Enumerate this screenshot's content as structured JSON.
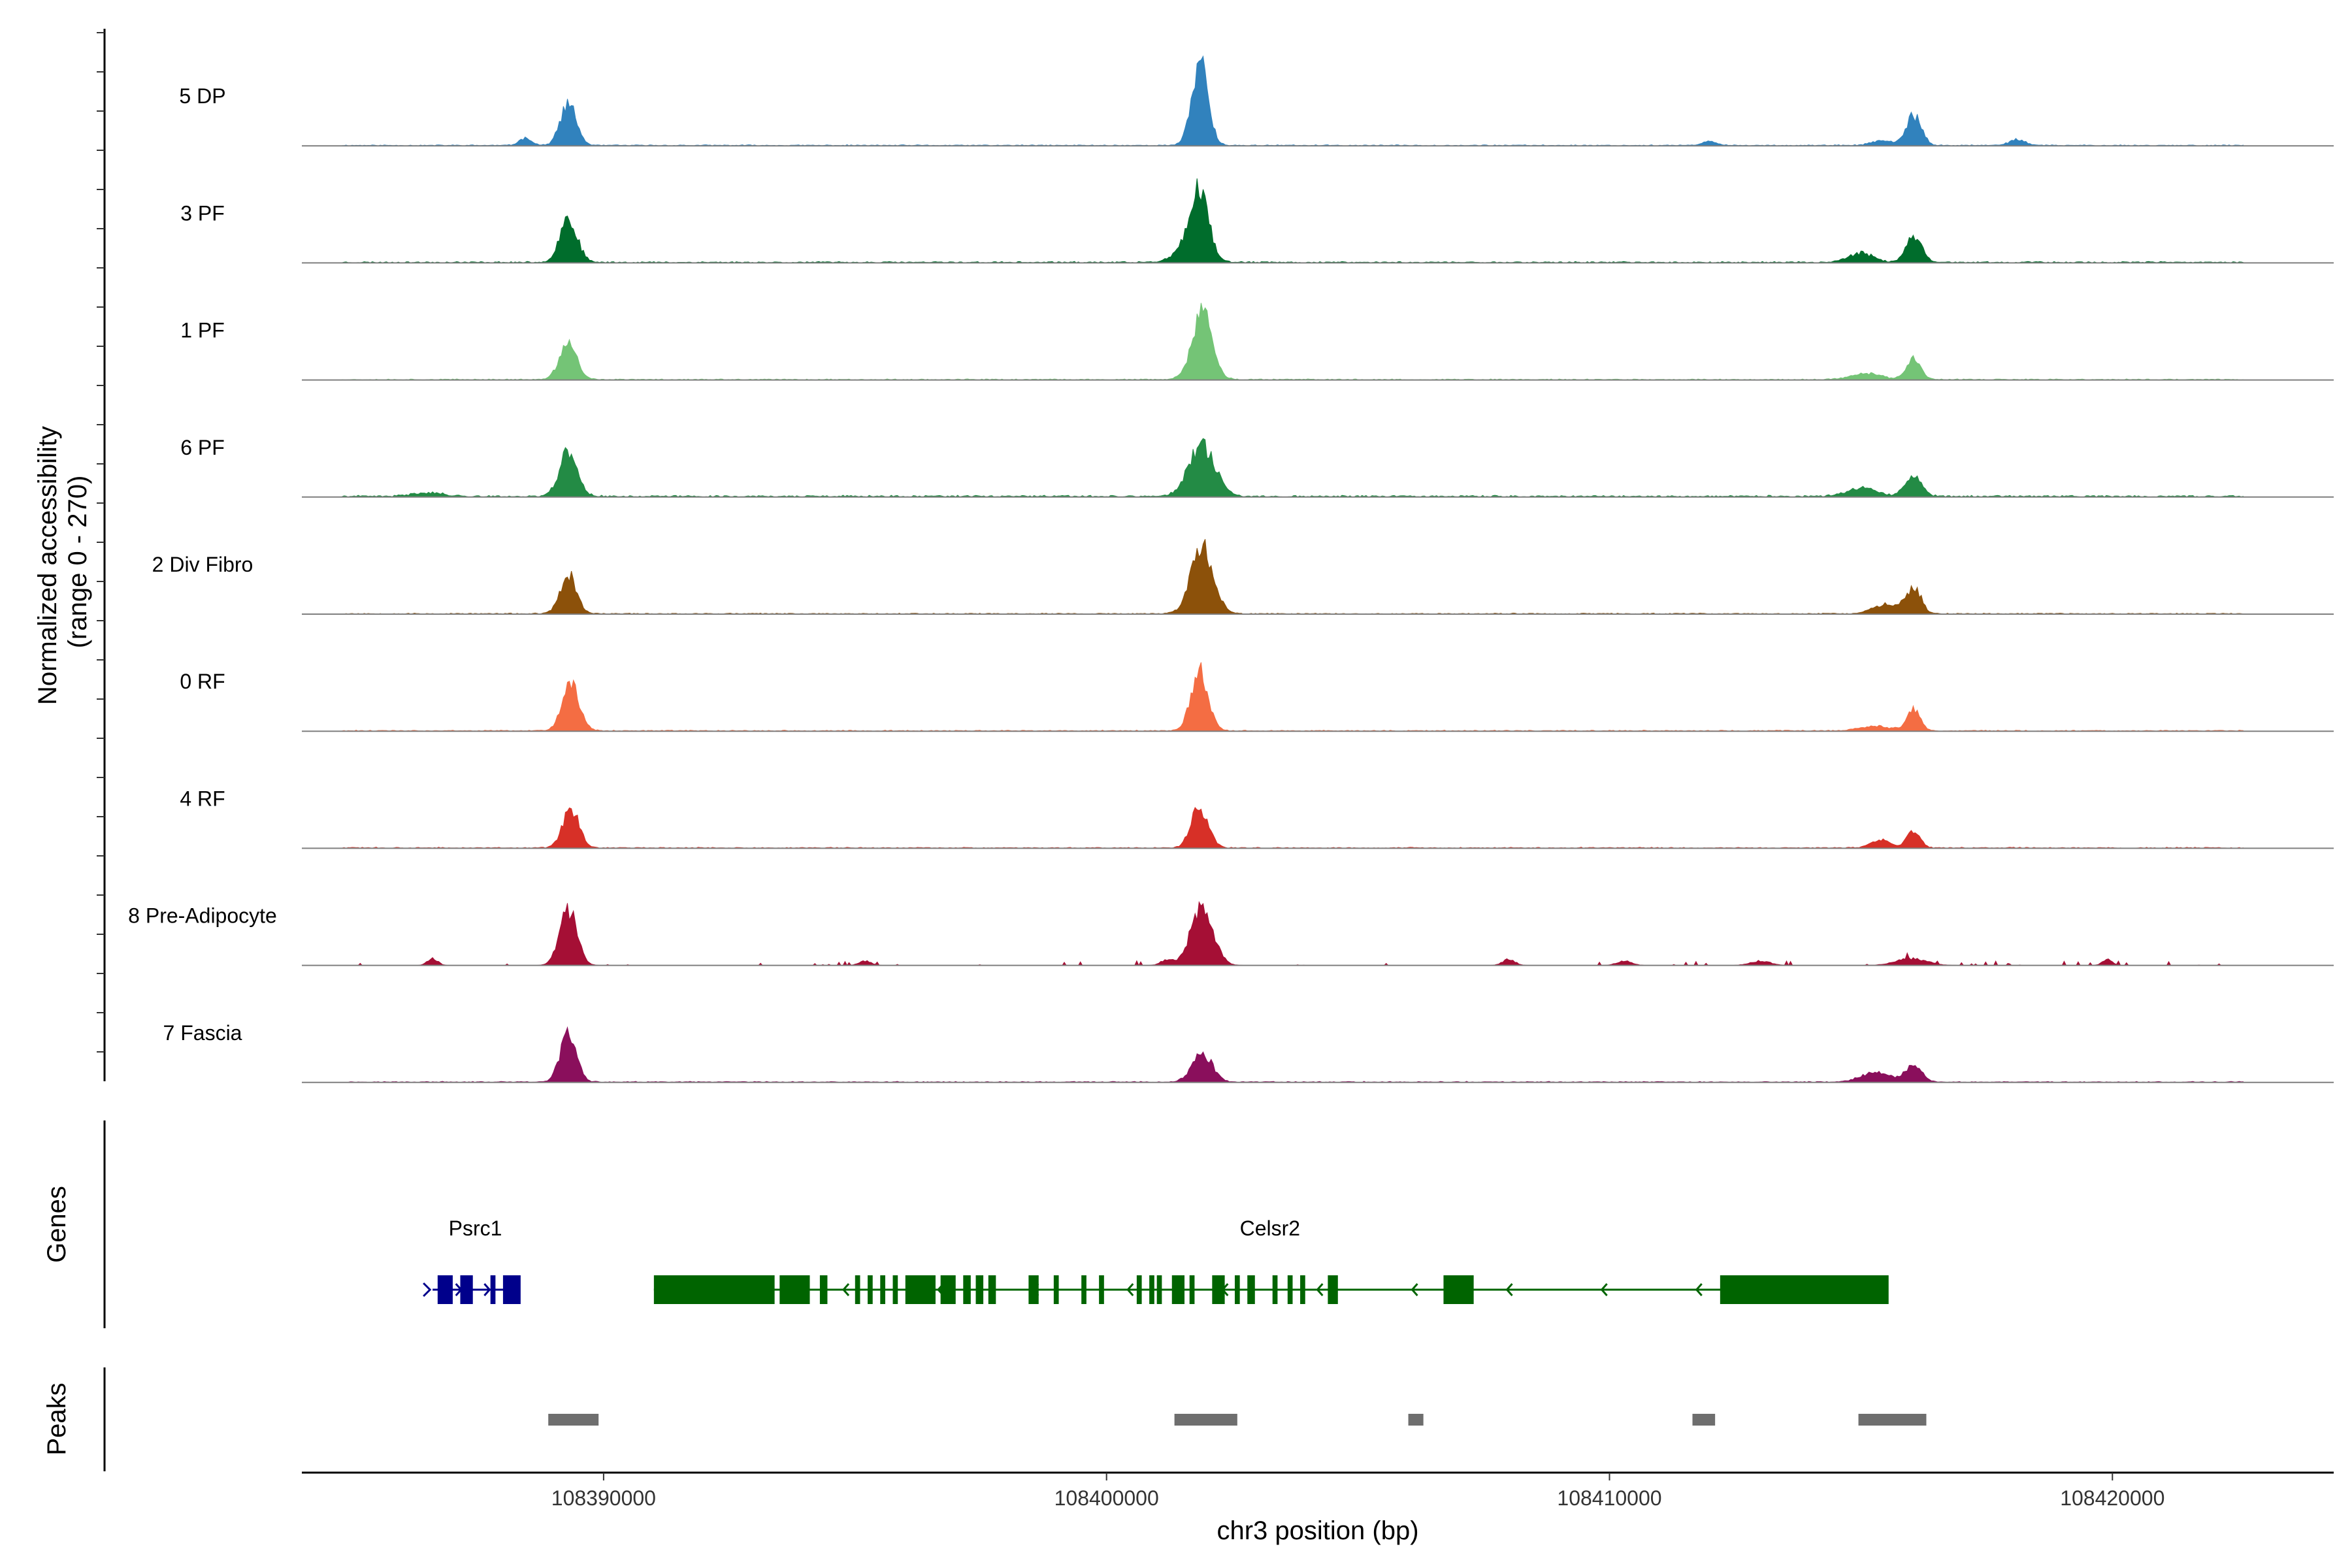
{
  "chart_data": {
    "type": "area",
    "title": "",
    "ylabel": "Normalized accessibility\n(range 0 - 270)",
    "xlabel": "chr3 position (bp)",
    "ylim": [
      0,
      270
    ],
    "xlim": [
      108384000,
      108424400
    ],
    "x_ticks": [
      {
        "value": 108390000,
        "label": "108390000"
      },
      {
        "value": 108400000,
        "label": "108400000"
      },
      {
        "value": 108410000,
        "label": "108410000"
      },
      {
        "value": 108420000,
        "label": "108420000"
      }
    ],
    "series": [
      {
        "name": "5 DP",
        "color": "#3182bd",
        "noise": 3,
        "seed": 11,
        "peaks": [
          [
            108389300,
            130,
            160
          ],
          [
            108401860,
            270,
            160
          ],
          [
            108416050,
            95,
            150
          ],
          [
            108388450,
            25,
            120
          ],
          [
            108415400,
            15,
            200
          ],
          [
            108418100,
            20,
            150
          ],
          [
            108412000,
            12,
            150
          ]
        ]
      },
      {
        "name": "3 PF",
        "color": "#006d2c",
        "noise": 4,
        "seed": 23,
        "peaks": [
          [
            108389300,
            145,
            170
          ],
          [
            108401850,
            190,
            170
          ],
          [
            108416050,
            85,
            150
          ],
          [
            108415000,
            30,
            250
          ],
          [
            108401700,
            60,
            280
          ]
        ]
      },
      {
        "name": "1 PF",
        "color": "#74c476",
        "noise": 3,
        "seed": 37,
        "peaks": [
          [
            108389300,
            115,
            170
          ],
          [
            108401900,
            210,
            200
          ],
          [
            108416050,
            70,
            140
          ],
          [
            108415100,
            20,
            300
          ]
        ]
      },
      {
        "name": "6 PF",
        "color": "#238b45",
        "noise": 5,
        "seed": 41,
        "peaks": [
          [
            108389300,
            140,
            180
          ],
          [
            108401900,
            160,
            260
          ],
          [
            108416050,
            70,
            160
          ],
          [
            108415000,
            25,
            300
          ],
          [
            108386500,
            12,
            300
          ]
        ]
      },
      {
        "name": "2 Div Fibro",
        "color": "#8c510a",
        "noise": 3,
        "seed": 53,
        "peaks": [
          [
            108389300,
            125,
            160
          ],
          [
            108401900,
            210,
            220
          ],
          [
            108416050,
            80,
            150
          ],
          [
            108415500,
            30,
            250
          ]
        ]
      },
      {
        "name": "0 RF",
        "color": "#f46d43",
        "noise": 3,
        "seed": 61,
        "peaks": [
          [
            108389350,
            150,
            170
          ],
          [
            108401850,
            190,
            170
          ],
          [
            108416050,
            65,
            130
          ],
          [
            108415300,
            15,
            300
          ]
        ]
      },
      {
        "name": "4 RF",
        "color": "#d73027",
        "noise": 3,
        "seed": 73,
        "peaks": [
          [
            108389350,
            125,
            160
          ],
          [
            108401850,
            130,
            170
          ],
          [
            108416050,
            55,
            130
          ],
          [
            108415400,
            25,
            200
          ]
        ]
      },
      {
        "name": "8 Pre-Adipocyte",
        "color": "#a50f35",
        "noise": 2,
        "seed": 89,
        "sparse": true,
        "peaks": [
          [
            108389300,
            180,
            170
          ],
          [
            108401900,
            190,
            220
          ],
          [
            108386600,
            22,
            100
          ],
          [
            108408000,
            20,
            120
          ],
          [
            108416000,
            22,
            300
          ],
          [
            108419900,
            18,
            100
          ],
          [
            108401200,
            18,
            120
          ],
          [
            108395200,
            14,
            120
          ],
          [
            108413000,
            14,
            200
          ],
          [
            108410300,
            14,
            150
          ]
        ]
      },
      {
        "name": "7 Fascia",
        "color": "#8a0f5c",
        "noise": 3,
        "seed": 97,
        "peaks": [
          [
            108389300,
            150,
            160
          ],
          [
            108401900,
            90,
            200
          ],
          [
            108416050,
            55,
            150
          ],
          [
            108415300,
            30,
            300
          ]
        ]
      }
    ],
    "genes": [
      {
        "name": "Psrc1",
        "strand": "+",
        "color": "#00008b",
        "start": 108386600,
        "end": 108388300,
        "exons": [
          [
            108386700,
            108387000
          ],
          [
            108387150,
            108387400
          ],
          [
            108387750,
            108387850
          ],
          [
            108388000,
            108388350
          ]
        ]
      },
      {
        "name": "Celsr2",
        "strand": "-",
        "color": "#006400",
        "start": 108391000,
        "end": 108415500,
        "exons": [
          [
            108391000,
            108393400
          ],
          [
            108393500,
            108394100
          ],
          [
            108394300,
            108394450
          ],
          [
            108395000,
            108395100
          ],
          [
            108395250,
            108395350
          ],
          [
            108395500,
            108395600
          ],
          [
            108395750,
            108395850
          ],
          [
            108396000,
            108396600
          ],
          [
            108396700,
            108397000
          ],
          [
            108397150,
            108397300
          ],
          [
            108397400,
            108397550
          ],
          [
            108397650,
            108397800
          ],
          [
            108398450,
            108398650
          ],
          [
            108398950,
            108399050
          ],
          [
            108399500,
            108399600
          ],
          [
            108399850,
            108399950
          ],
          [
            108400600,
            108400700
          ],
          [
            108400850,
            108400950
          ],
          [
            108401000,
            108401100
          ],
          [
            108401300,
            108401550
          ],
          [
            108401650,
            108401750
          ],
          [
            108402100,
            108402350
          ],
          [
            108402550,
            108402650
          ],
          [
            108402800,
            108402950
          ],
          [
            108403300,
            108403400
          ],
          [
            108403600,
            108403700
          ],
          [
            108403850,
            108403950
          ],
          [
            108404400,
            108404600
          ],
          [
            108406700,
            108407300
          ],
          [
            108412200,
            108415550
          ]
        ]
      }
    ],
    "peaks_track": [
      [
        108388900,
        108389900
      ],
      [
        108401350,
        108402600
      ],
      [
        108406000,
        108406300
      ],
      [
        108411650,
        108412100
      ],
      [
        108414950,
        108416300
      ]
    ],
    "panel_labels": {
      "genes": "Genes",
      "peaks": "Peaks"
    }
  }
}
